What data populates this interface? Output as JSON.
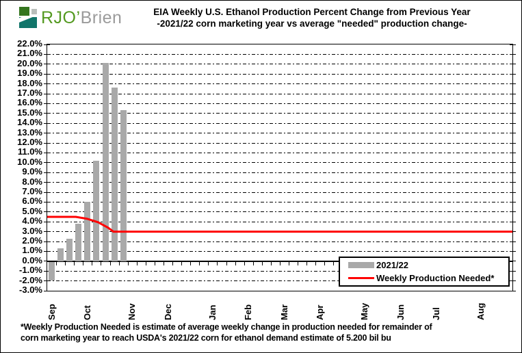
{
  "logo": {
    "text_green": "RJO’",
    "text_gray": "Brien"
  },
  "title": {
    "line1": "EIA Weekly U.S. Ethanol Production Percent Change from Previous Year",
    "line2": "-2021/22 corn marketing year vs average \"needed\" production change-"
  },
  "chart_data": {
    "type": "bar",
    "title": "EIA Weekly U.S. Ethanol Production Percent Change from Previous Year",
    "subtitle": "-2021/22 corn marketing year vs average \"needed\" production change-",
    "ylabel": "percent change",
    "ylim": [
      -3,
      22
    ],
    "y_tick_step": 1,
    "y_ticks": [
      22,
      21,
      20,
      19,
      18,
      17,
      16,
      15,
      14,
      13,
      12,
      11,
      10,
      9,
      8,
      7,
      6,
      5,
      4,
      3,
      2,
      1,
      0,
      -1,
      -2,
      -3
    ],
    "weeks_total": 52,
    "grid": "dash-dot horizontal",
    "x_months": [
      {
        "label": "Sep",
        "week": 0
      },
      {
        "label": "Oct",
        "week": 4
      },
      {
        "label": "Nov",
        "week": 9
      },
      {
        "label": "Dec",
        "week": 13
      },
      {
        "label": "Jan",
        "week": 18
      },
      {
        "label": "Feb",
        "week": 22
      },
      {
        "label": "Mar",
        "week": 26
      },
      {
        "label": "Apr",
        "week": 30
      },
      {
        "label": "May",
        "week": 35
      },
      {
        "label": "Jun",
        "week": 39
      },
      {
        "label": "Jul",
        "week": 43
      },
      {
        "label": "Aug",
        "week": 48
      }
    ],
    "bars": {
      "name": "2021/22",
      "color": "#a9a9a9",
      "note": "weekly percent change, first 9 reported weeks of the 2021/22 marketing year (Sep-Oct)",
      "values": [
        -1.9,
        1.3,
        2.3,
        3.8,
        6.0,
        10.2,
        20.1,
        17.6,
        15.3
      ]
    },
    "needed_line": {
      "name": "Weekly Production Needed*",
      "color": "#ff0000",
      "points_week_pct": [
        [
          0,
          4.5
        ],
        [
          3.2,
          4.5
        ],
        [
          4.5,
          4.3
        ],
        [
          5.7,
          3.95
        ],
        [
          6.8,
          3.4
        ],
        [
          7.4,
          3.0
        ],
        [
          52,
          3.0
        ]
      ]
    },
    "legend_position": "inside bottom-right"
  },
  "legend": {
    "items": [
      {
        "label": "2021/22",
        "swatch": "bar",
        "color": "#a9a9a9"
      },
      {
        "label": "Weekly Production Needed*",
        "swatch": "line",
        "color": "#ff0000"
      }
    ]
  },
  "footnote": {
    "line1": "*Weekly Production Needed is estimate of average weekly change in production  needed for remainder of",
    "line2": "corn marketing year to reach USDA's  2021/22  corn for ethanol demand estimate of 5.200 bil bu"
  }
}
